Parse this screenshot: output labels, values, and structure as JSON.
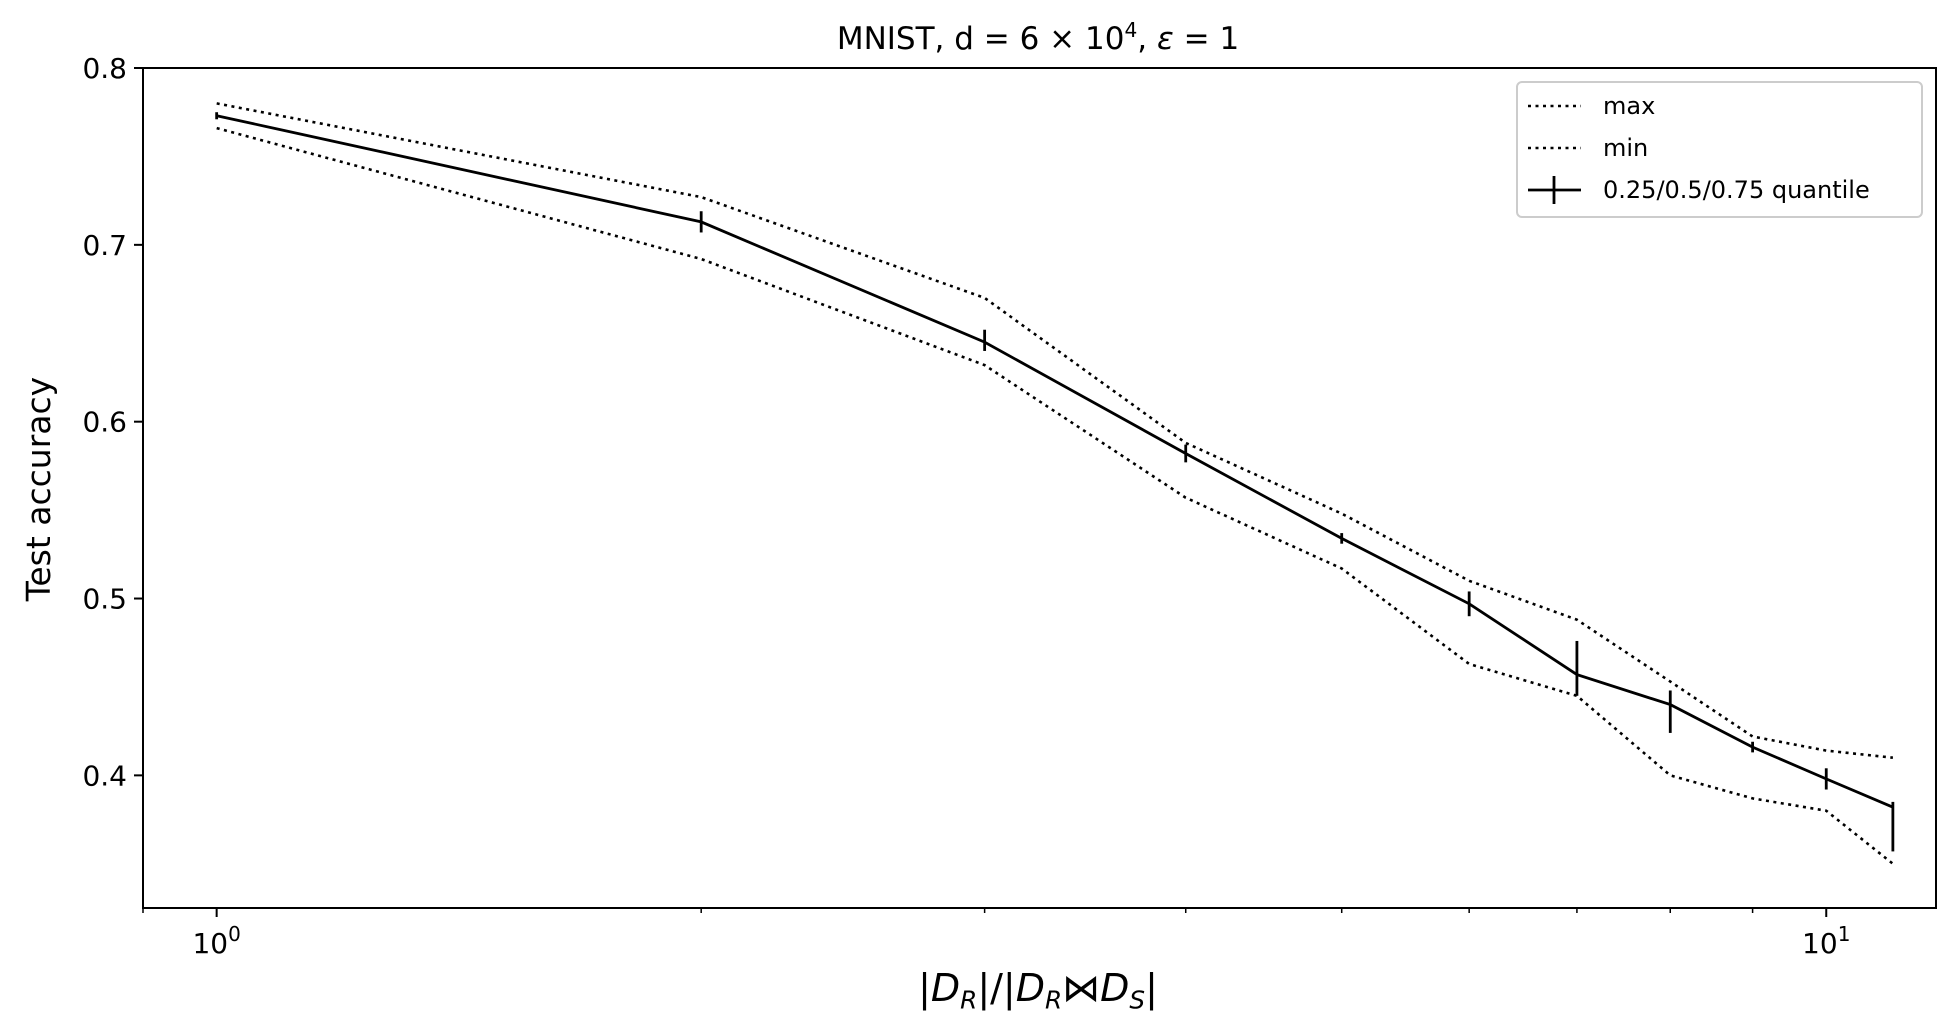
{
  "chart_data": {
    "type": "line",
    "title": "MNIST, d = 6 × 10^4, ε = 1",
    "title_parts": {
      "prefix": "MNIST, d = 6 × 10",
      "exponent": "4",
      "suffix": ", ",
      "epsilon": "ε",
      "eq": " = 1"
    },
    "xlabel": "|D_R|/|D_R⋈D_S|",
    "xlabel_parts": {
      "bar1": "|",
      "d1": "D",
      "s1": "R",
      "mid": "|/|",
      "d2": "D",
      "s2": "R",
      "join": "⋈",
      "d3": "D",
      "s3": "S",
      "bar2": "|"
    },
    "ylabel": "Test accuracy",
    "xscale": "log",
    "xlim": [
      0.9,
      11.7
    ],
    "ylim": [
      0.325,
      0.8
    ],
    "x_major_ticks": [
      {
        "value": 1,
        "base": "10",
        "exp": "0"
      },
      {
        "value": 10,
        "base": "10",
        "exp": "1"
      }
    ],
    "x_minor_ticks": [
      0.9,
      2,
      3,
      4,
      5,
      6,
      7,
      8,
      9
    ],
    "y_ticks": [
      {
        "value": 0.4,
        "label": "0.4"
      },
      {
        "value": 0.5,
        "label": "0.5"
      },
      {
        "value": 0.6,
        "label": "0.6"
      },
      {
        "value": 0.7,
        "label": "0.7"
      },
      {
        "value": 0.8,
        "label": "0.8"
      }
    ],
    "grid": false,
    "legend_position": "top-right",
    "series": [
      {
        "name": "max",
        "style": "dotted",
        "x": [
          1,
          2,
          3,
          4,
          5,
          6,
          7,
          8,
          9,
          10,
          11
        ],
        "y": [
          0.78,
          0.727,
          0.67,
          0.588,
          0.548,
          0.51,
          0.488,
          0.453,
          0.422,
          0.414,
          0.41
        ]
      },
      {
        "name": "min",
        "style": "dotted",
        "x": [
          1,
          2,
          3,
          4,
          5,
          6,
          7,
          8,
          9,
          10,
          11
        ],
        "y": [
          0.766,
          0.692,
          0.632,
          0.557,
          0.517,
          0.463,
          0.445,
          0.4,
          0.387,
          0.38,
          0.35
        ]
      },
      {
        "name": "0.25/0.5/0.75 quantile",
        "style": "solid-errorbar",
        "x": [
          1,
          2,
          3,
          4,
          5,
          6,
          7,
          8,
          9,
          10,
          11
        ],
        "y": [
          0.773,
          0.713,
          0.645,
          0.582,
          0.534,
          0.497,
          0.457,
          0.44,
          0.416,
          0.398,
          0.382
        ],
        "q25": [
          0.771,
          0.707,
          0.64,
          0.577,
          0.531,
          0.49,
          0.445,
          0.424,
          0.413,
          0.392,
          0.357
        ],
        "q75": [
          0.775,
          0.719,
          0.652,
          0.587,
          0.537,
          0.504,
          0.476,
          0.448,
          0.419,
          0.404,
          0.385
        ]
      }
    ],
    "colors": {
      "line": "#000000",
      "background": "#ffffff"
    }
  }
}
